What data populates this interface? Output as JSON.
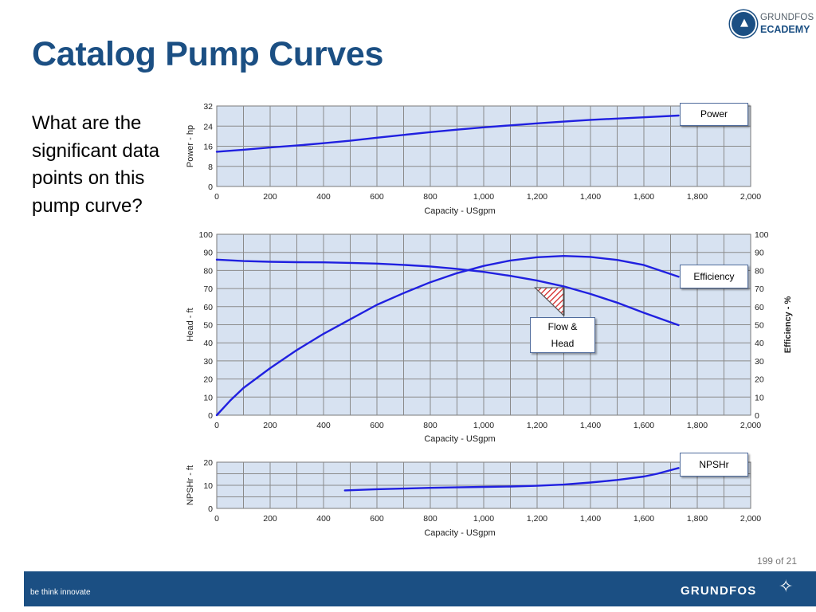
{
  "slide": {
    "title": "Catalog Pump Curves",
    "question": "What are the significant data points on this pump curve?",
    "page": "199 of 21",
    "footer_tagline": "be think innovate",
    "footer_brand": "GRUNDFOS",
    "colors": {
      "title": "#1b4f83",
      "footer": "#1b4f83",
      "curve": "#2020e0",
      "plot_bg": "#d7e2f1"
    }
  },
  "logo": {
    "line1": "GRUNDFOS",
    "line2": "ECADEMY",
    "icon": "graduation-cap-icon"
  },
  "callouts": {
    "power": "Power",
    "efficiency": "Efficiency",
    "flow_head": "Flow &\nHead",
    "npshr": "NPSHr"
  },
  "chart_data": [
    {
      "type": "line",
      "xlabel": "Capacity - USgpm",
      "ylabel": "Power - hp",
      "xlim": [
        0,
        2000
      ],
      "ylim": [
        0,
        32
      ],
      "xticks": [
        "0",
        "200",
        "400",
        "600",
        "800",
        "1,000",
        "1,200",
        "1,400",
        "1,600",
        "1,800",
        "2,000"
      ],
      "yticks": [
        "0",
        "8",
        "16",
        "24",
        "32"
      ],
      "grid": true,
      "series": [
        {
          "name": "Power",
          "x": [
            0,
            100,
            200,
            300,
            400,
            500,
            600,
            700,
            800,
            900,
            1000,
            1100,
            1200,
            1300,
            1400,
            1500,
            1600,
            1730
          ],
          "y": [
            13.8,
            14.6,
            15.5,
            16.3,
            17.2,
            18.2,
            19.4,
            20.5,
            21.6,
            22.6,
            23.5,
            24.3,
            25.1,
            25.8,
            26.5,
            27.0,
            27.5,
            28.2
          ]
        }
      ]
    },
    {
      "type": "line",
      "xlabel": "Capacity - USgpm",
      "ylabel": "Head - ft",
      "y2label": "Efficiency - %",
      "xlim": [
        0,
        2000
      ],
      "ylim": [
        0,
        100
      ],
      "y2lim": [
        0,
        100
      ],
      "xticks": [
        "0",
        "200",
        "400",
        "600",
        "800",
        "1,000",
        "1,200",
        "1,400",
        "1,600",
        "1,800",
        "2,000"
      ],
      "yticks": [
        "0",
        "10",
        "20",
        "30",
        "40",
        "50",
        "60",
        "70",
        "80",
        "90",
        "100"
      ],
      "grid": true,
      "series": [
        {
          "name": "Head",
          "x": [
            0,
            100,
            200,
            300,
            400,
            500,
            600,
            700,
            800,
            900,
            1000,
            1100,
            1200,
            1300,
            1400,
            1500,
            1600,
            1730
          ],
          "y": [
            86,
            85.2,
            84.8,
            84.6,
            84.5,
            84.2,
            83.8,
            83.1,
            82.2,
            80.9,
            79.2,
            77.0,
            74.4,
            71.2,
            67.0,
            62.2,
            56.6,
            49.8
          ]
        },
        {
          "name": "Efficiency",
          "x": [
            0,
            50,
            100,
            200,
            300,
            400,
            500,
            600,
            700,
            800,
            900,
            1000,
            1100,
            1200,
            1300,
            1400,
            1500,
            1600,
            1730
          ],
          "y": [
            0,
            8,
            15,
            26,
            36,
            45,
            53,
            61,
            67.5,
            73.5,
            78.5,
            82.5,
            85.5,
            87.3,
            88.0,
            87.5,
            85.8,
            83.0,
            76.5
          ]
        }
      ],
      "annotation": {
        "x": 1300,
        "y": 70,
        "label": "Flow & Head"
      }
    },
    {
      "type": "line",
      "xlabel": "Capacity - USgpm",
      "ylabel": "NPSHr - ft",
      "xlim": [
        0,
        2000
      ],
      "ylim": [
        0,
        20
      ],
      "xticks": [
        "0",
        "200",
        "400",
        "600",
        "800",
        "1,000",
        "1,200",
        "1,400",
        "1,600",
        "1,800",
        "2,000"
      ],
      "yticks": [
        "0",
        "10",
        "20"
      ],
      "grid": true,
      "series": [
        {
          "name": "NPSHr",
          "x": [
            480,
            600,
            700,
            800,
            900,
            1000,
            1100,
            1200,
            1300,
            1400,
            1500,
            1600,
            1650,
            1730
          ],
          "y": [
            7.8,
            8.3,
            8.6,
            8.9,
            9.1,
            9.3,
            9.5,
            9.8,
            10.3,
            11.2,
            12.3,
            13.8,
            15.0,
            17.5
          ]
        }
      ]
    }
  ]
}
